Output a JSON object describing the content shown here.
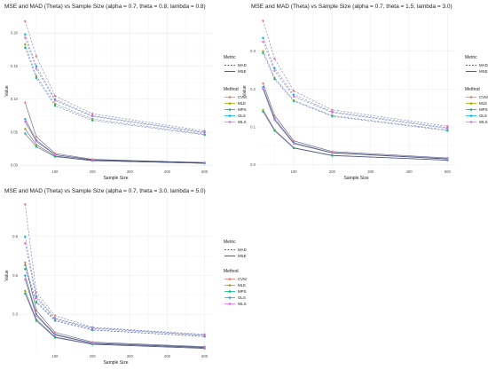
{
  "metric_legend": {
    "title": "Metric",
    "items": [
      "MAD",
      "MSE"
    ]
  },
  "method_legend": {
    "title": "Method",
    "items": [
      {
        "name": "CVM",
        "color": "#F8766D"
      },
      {
        "name": "MLE",
        "color": "#A3A500"
      },
      {
        "name": "MPS",
        "color": "#00BF7D"
      },
      {
        "name": "OLS",
        "color": "#00B0F6"
      },
      {
        "name": "WLS",
        "color": "#E76BF3"
      }
    ]
  },
  "colors": {
    "CVM": "#F8766D",
    "MLE": "#A3A500",
    "MPS": "#00BF7D",
    "OLS": "#00B0F6",
    "WLS": "#E76BF3",
    "mad_line": "#5b6bb3",
    "mse_line": "#3a3f6e",
    "grid": "#ebebeb"
  },
  "chart_data": [
    {
      "type": "line",
      "title": "MSE and MAD (Theta) vs Sample Size (alpha = 0.7, theta = 0.8, lambda = 0.8)",
      "xlabel": "Sample Size",
      "ylabel": "Value",
      "xlim": [
        5,
        520
      ],
      "ylim": [
        -0.005,
        0.23
      ],
      "x_ticks": [
        100,
        200,
        300,
        400,
        500
      ],
      "y_ticks": [
        0.0,
        0.05,
        0.1,
        0.15,
        0.2
      ],
      "y_tick_labels": [
        "0.00",
        "0.05",
        "0.10",
        "0.15",
        "0.20"
      ],
      "x": [
        20,
        50,
        100,
        200,
        500
      ],
      "grid": true,
      "legend": "right",
      "series": [
        {
          "name": "CVM",
          "metric": "MAD",
          "values": [
            0.218,
            0.165,
            0.105,
            0.078,
            0.052
          ]
        },
        {
          "name": "MLE",
          "metric": "MAD",
          "values": [
            0.183,
            0.135,
            0.093,
            0.07,
            0.047
          ]
        },
        {
          "name": "MPS",
          "metric": "MAD",
          "values": [
            0.178,
            0.132,
            0.09,
            0.068,
            0.046
          ]
        },
        {
          "name": "OLS",
          "metric": "MAD",
          "values": [
            0.198,
            0.15,
            0.1,
            0.075,
            0.05
          ]
        },
        {
          "name": "WLS",
          "metric": "MAD",
          "values": [
            0.193,
            0.146,
            0.098,
            0.074,
            0.049
          ]
        },
        {
          "name": "CVM",
          "metric": "MSE",
          "values": [
            0.095,
            0.043,
            0.018,
            0.009,
            0.004
          ]
        },
        {
          "name": "MLE",
          "metric": "MSE",
          "values": [
            0.055,
            0.031,
            0.014,
            0.007,
            0.003
          ]
        },
        {
          "name": "MPS",
          "metric": "MSE",
          "values": [
            0.048,
            0.028,
            0.013,
            0.007,
            0.003
          ]
        },
        {
          "name": "OLS",
          "metric": "MSE",
          "values": [
            0.07,
            0.038,
            0.016,
            0.008,
            0.004
          ]
        },
        {
          "name": "WLS",
          "metric": "MSE",
          "values": [
            0.066,
            0.036,
            0.016,
            0.008,
            0.004
          ]
        }
      ]
    },
    {
      "type": "line",
      "title": "MSE and MAD (Theta) vs Sample Size (alpha = 0.7, theta = 1.5, lambda = 3.0)",
      "xlabel": "Sample Size",
      "ylabel": "Value",
      "xlim": [
        5,
        520
      ],
      "ylim": [
        -0.01,
        0.4
      ],
      "x_ticks": [
        100,
        200,
        300,
        400,
        500
      ],
      "y_ticks": [
        0.0,
        0.1,
        0.2,
        0.3
      ],
      "y_tick_labels": [
        "0.0",
        "0.1",
        "0.2",
        "0.3"
      ],
      "x": [
        20,
        50,
        100,
        200,
        500
      ],
      "grid": true,
      "legend": "right",
      "series": [
        {
          "name": "CVM",
          "metric": "MAD",
          "values": [
            0.38,
            0.28,
            0.195,
            0.145,
            0.102
          ]
        },
        {
          "name": "MLE",
          "metric": "MAD",
          "values": [
            0.3,
            0.23,
            0.17,
            0.13,
            0.092
          ]
        },
        {
          "name": "MPS",
          "metric": "MAD",
          "values": [
            0.295,
            0.226,
            0.168,
            0.128,
            0.09
          ]
        },
        {
          "name": "OLS",
          "metric": "MAD",
          "values": [
            0.335,
            0.255,
            0.185,
            0.14,
            0.098
          ]
        },
        {
          "name": "WLS",
          "metric": "MAD",
          "values": [
            0.325,
            0.248,
            0.18,
            0.138,
            0.096
          ]
        },
        {
          "name": "CVM",
          "metric": "MSE",
          "values": [
            0.215,
            0.13,
            0.063,
            0.035,
            0.018
          ]
        },
        {
          "name": "MLE",
          "metric": "MSE",
          "values": [
            0.145,
            0.092,
            0.045,
            0.025,
            0.012
          ]
        },
        {
          "name": "MPS",
          "metric": "MSE",
          "values": [
            0.14,
            0.09,
            0.044,
            0.024,
            0.012
          ]
        },
        {
          "name": "OLS",
          "metric": "MSE",
          "values": [
            0.205,
            0.122,
            0.058,
            0.032,
            0.016
          ]
        },
        {
          "name": "WLS",
          "metric": "MSE",
          "values": [
            0.2,
            0.118,
            0.056,
            0.031,
            0.015
          ]
        }
      ]
    },
    {
      "type": "line",
      "title": "MSE and MAD (Theta) vs Sample Size (alpha = 0.7, theta = 3.0, lambda = 5.0)",
      "xlabel": "Sample Size",
      "ylabel": "Value",
      "xlim": [
        5,
        520
      ],
      "ylim": [
        0.0,
        1.2
      ],
      "x_ticks": [
        100,
        200,
        300,
        400,
        500
      ],
      "y_ticks": [
        0.3,
        0.6,
        0.9
      ],
      "y_tick_labels": [
        "0.3",
        "0.6",
        "0.9"
      ],
      "x": [
        20,
        50,
        100,
        200,
        500
      ],
      "grid": true,
      "legend": "right",
      "series": [
        {
          "name": "CVM",
          "metric": "MAD",
          "values": [
            1.15,
            0.47,
            0.29,
            0.2,
            0.145
          ]
        },
        {
          "name": "MLE",
          "metric": "MAD",
          "values": [
            0.68,
            0.4,
            0.255,
            0.18,
            0.13
          ]
        },
        {
          "name": "MPS",
          "metric": "MAD",
          "values": [
            0.65,
            0.39,
            0.25,
            0.178,
            0.128
          ]
        },
        {
          "name": "OLS",
          "metric": "MAD",
          "values": [
            0.9,
            0.44,
            0.27,
            0.195,
            0.14
          ]
        },
        {
          "name": "WLS",
          "metric": "MAD",
          "values": [
            0.85,
            0.425,
            0.265,
            0.19,
            0.138
          ]
        },
        {
          "name": "CVM",
          "metric": "MSE",
          "values": [
            0.7,
            0.33,
            0.16,
            0.085,
            0.05
          ]
        },
        {
          "name": "MLE",
          "metric": "MSE",
          "values": [
            0.48,
            0.26,
            0.125,
            0.07,
            0.038
          ]
        },
        {
          "name": "MPS",
          "metric": "MSE",
          "values": [
            0.46,
            0.25,
            0.12,
            0.068,
            0.036
          ]
        },
        {
          "name": "OLS",
          "metric": "MSE",
          "values": [
            0.6,
            0.3,
            0.145,
            0.078,
            0.045
          ]
        },
        {
          "name": "WLS",
          "metric": "MSE",
          "values": [
            0.57,
            0.29,
            0.14,
            0.076,
            0.043
          ]
        }
      ]
    }
  ]
}
